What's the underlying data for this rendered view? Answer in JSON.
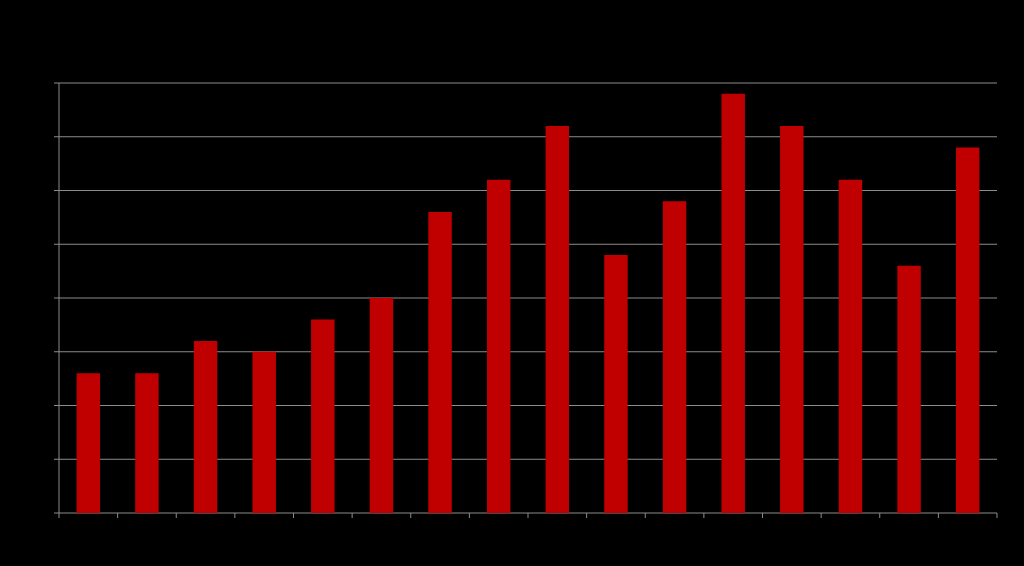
{
  "chart_data": {
    "type": "bar",
    "categories": [
      null,
      null,
      null,
      null,
      null,
      null,
      null,
      null,
      null,
      null,
      null,
      null,
      null,
      null,
      null,
      null
    ],
    "values": [
      2.6,
      2.6,
      3.2,
      3.0,
      3.6,
      4.0,
      5.6,
      6.2,
      7.2,
      4.8,
      5.8,
      7.8,
      7.2,
      6.2,
      4.6,
      6.8
    ],
    "color": "#c00000",
    "ylim": [
      0,
      8
    ],
    "yticks": [
      0,
      1,
      2,
      3,
      4,
      5,
      6,
      7,
      8
    ],
    "grid": true
  }
}
